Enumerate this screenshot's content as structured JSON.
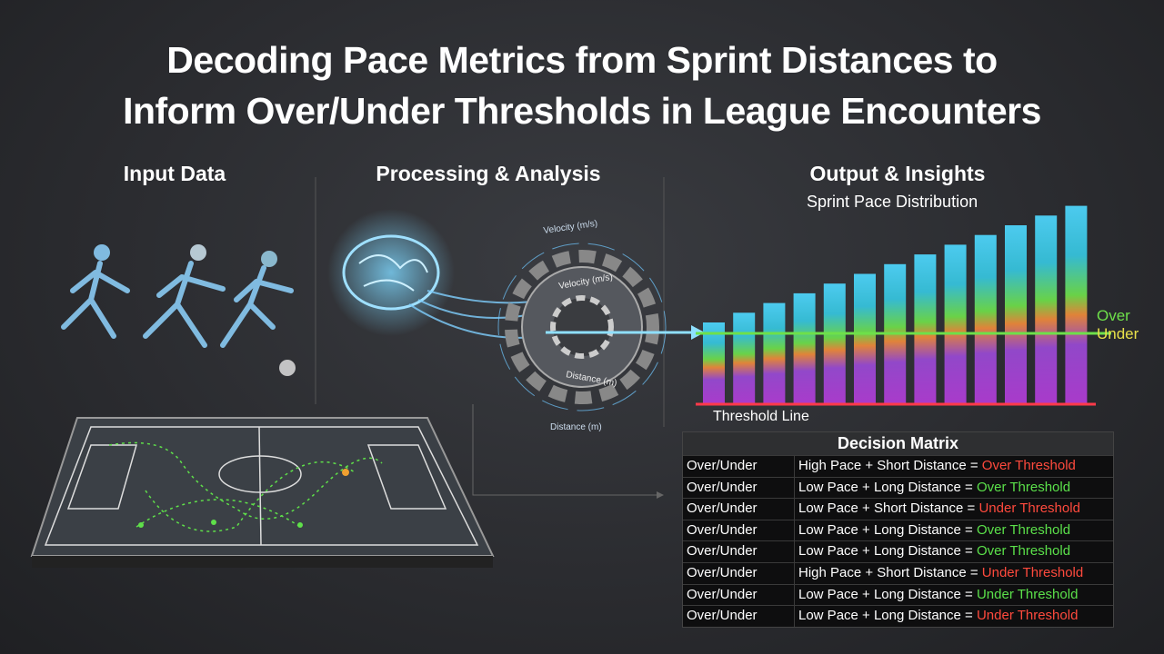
{
  "title_lines": [
    "Decoding Pace Metrics from Sprint Distances to",
    "Inform Over/Under Thresholds in League Encounters"
  ],
  "sections": [
    "Input Data",
    "Processing & Analysis",
    "Output & Insights"
  ],
  "processing": {
    "labels": [
      "Velocity (m/s)",
      "Velocity (m/s)",
      "Distance (m)",
      "Distance (m)"
    ]
  },
  "output": {
    "chart_title": "Sprint Pace Distribution",
    "over_label": "Over",
    "under_label": "Under",
    "threshold_label": "Threshold Line"
  },
  "decision_matrix": {
    "title": "Decision Matrix",
    "rows": [
      {
        "label": "Over/Under",
        "condition": "High Pace + Short Distance =",
        "result": "Over Threshold",
        "result_color": "#ff4a3d"
      },
      {
        "label": "Over/Under",
        "condition": "Low Pace + Long Distance =",
        "result": "Over Threshold",
        "result_color": "#5be04a"
      },
      {
        "label": "Over/Under",
        "condition": "Low Pace + Short Distance =",
        "result": "Under Threshold",
        "result_color": "#ff4a3d"
      },
      {
        "label": "Over/Under",
        "condition": "Low Pace + Long Distance =",
        "result": "Over Threshold",
        "result_color": "#5be04a"
      },
      {
        "label": "Over/Under",
        "condition": "Low Pace + Long Distance =",
        "result": "Over Threshold",
        "result_color": "#5be04a"
      },
      {
        "label": "Over/Under",
        "condition": "High Pace + Short Distance =",
        "result": "Under Threshold",
        "result_color": "#ff4a3d"
      },
      {
        "label": "Over/Under",
        "condition": "Low Pace + Long Distance =",
        "result": "Under Threshold",
        "result_color": "#5be04a"
      },
      {
        "label": "Over/Under",
        "condition": "Low Pace + Long Distance =",
        "result": "Under Threshold",
        "result_color": "#ff4a3d"
      }
    ]
  }
}
